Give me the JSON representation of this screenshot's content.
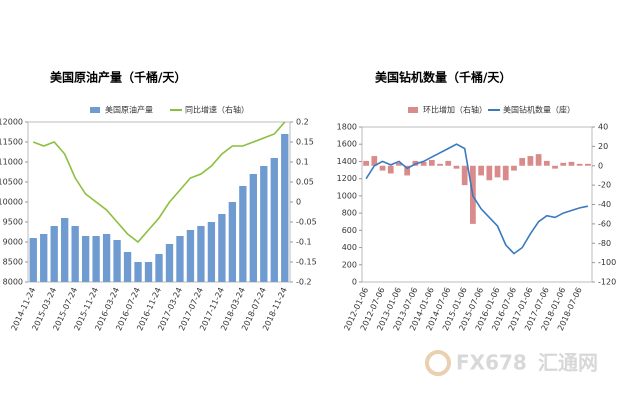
{
  "chart_data": [
    {
      "type": "bar_line",
      "title": "美国原油产量（千桶/天）",
      "categories": [
        "2014-11-24",
        null,
        "2015-03-24",
        null,
        "2015-07-24",
        null,
        "2015-11-24",
        null,
        "2016-03-24",
        null,
        "2016-07-24",
        null,
        "2016-11-24",
        null,
        "2017-03-24",
        null,
        "2017-07-24",
        null,
        "2017-11-24",
        null,
        "2018-03-24",
        null,
        "2018-07-24",
        null,
        "2018-11-24"
      ],
      "series": [
        {
          "name": "美国原油产量",
          "kind": "bar",
          "color": "#6f9bd0",
          "values": [
            9100,
            9200,
            9400,
            9600,
            9400,
            9150,
            9150,
            9200,
            9050,
            8750,
            8500,
            8500,
            8700,
            8950,
            9150,
            9300,
            9400,
            9500,
            9700,
            10000,
            10400,
            10700,
            10900,
            11100,
            11700
          ]
        },
        {
          "name": "同比增速（右轴）",
          "kind": "line",
          "axis": "y2",
          "color": "#8cbf3f",
          "values": [
            0.15,
            0.14,
            0.15,
            0.12,
            0.06,
            0.02,
            0.0,
            -0.02,
            -0.05,
            -0.08,
            -0.1,
            -0.07,
            -0.04,
            0.0,
            0.03,
            0.06,
            0.07,
            0.09,
            0.12,
            0.14,
            0.14,
            0.15,
            0.16,
            0.17,
            0.2
          ]
        }
      ],
      "ylim": [
        8000,
        12000
      ],
      "yticks": [
        8000,
        8500,
        9000,
        9500,
        10000,
        10500,
        11000,
        11500,
        12000
      ],
      "y2lim": [
        -0.2,
        0.2
      ],
      "y2ticks": [
        -0.2,
        -0.15,
        -0.1,
        -0.05,
        0,
        0.05,
        0.1,
        0.15,
        0.2
      ]
    },
    {
      "type": "bar_line",
      "title": "美国钻机数量（千桶/天）",
      "categories": [
        "2012-01-06",
        null,
        "2012-07-06",
        null,
        "2013-01-06",
        null,
        "2013-07-06",
        null,
        "2014-01-06",
        null,
        "2014-07-06",
        null,
        "2015-01-06",
        null,
        "2015-07-06",
        null,
        "2016-01-06",
        null,
        "2016-07-06",
        null,
        "2017-01-06",
        null,
        "2017-07-06",
        null,
        "2018-01-06",
        null,
        "2018-07-06",
        null
      ],
      "series": [
        {
          "name": "环比增加（右轴）",
          "kind": "bar",
          "axis": "y2",
          "color": "#d98b8b",
          "values": [
            5,
            10,
            -5,
            -8,
            3,
            -10,
            5,
            4,
            6,
            2,
            5,
            -3,
            -20,
            -60,
            -10,
            -15,
            -12,
            -15,
            -5,
            8,
            10,
            12,
            5,
            -3,
            3,
            4,
            2,
            2
          ]
        },
        {
          "name": "美国钻机数量（座）",
          "kind": "line",
          "color": "#3a7abf",
          "values": [
            1200,
            1350,
            1400,
            1360,
            1400,
            1320,
            1370,
            1400,
            1450,
            1500,
            1550,
            1600,
            1550,
            1000,
            850,
            750,
            650,
            430,
            330,
            400,
            560,
            700,
            770,
            750,
            800,
            830,
            860,
            880
          ]
        }
      ],
      "ylim": [
        0,
        1800
      ],
      "yticks": [
        0,
        200,
        400,
        600,
        800,
        1000,
        1200,
        1400,
        1600,
        1800
      ],
      "y2lim": [
        -120,
        40
      ],
      "y2ticks": [
        -120,
        -100,
        -80,
        -60,
        -40,
        -20,
        0,
        20,
        40
      ]
    }
  ],
  "watermark": {
    "brand": "FX678",
    "name": "汇通网"
  }
}
